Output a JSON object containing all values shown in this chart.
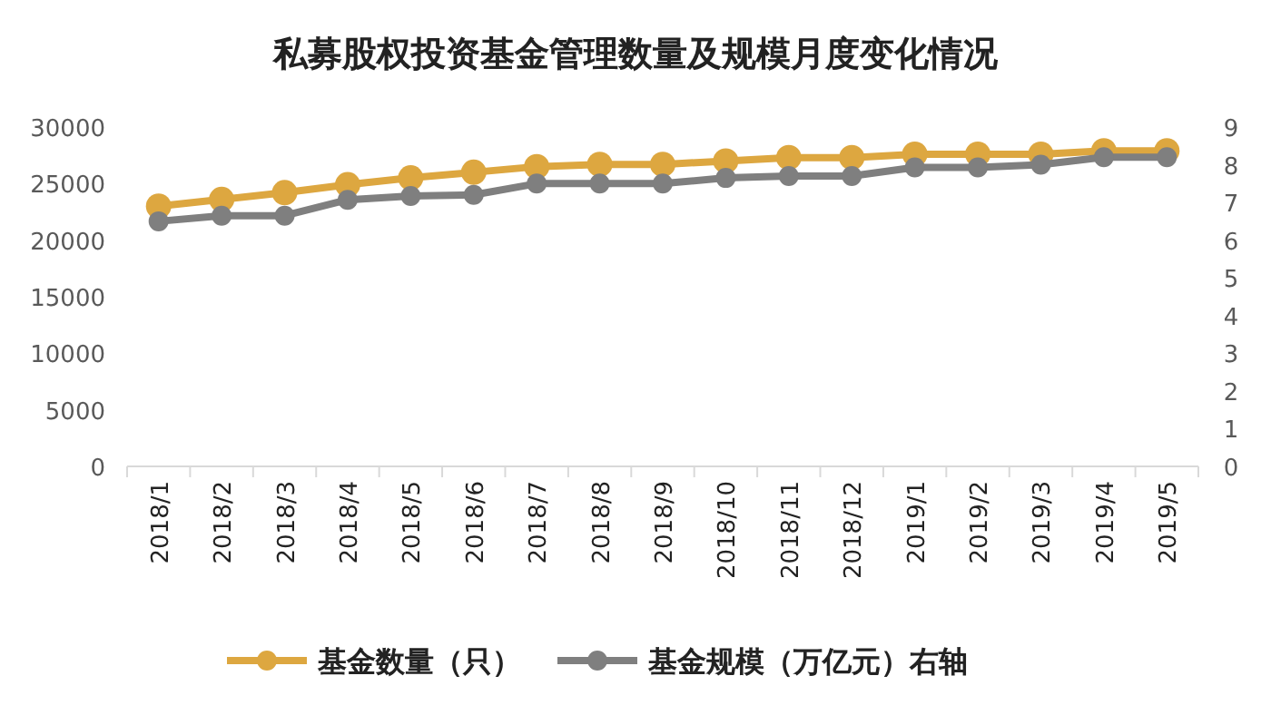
{
  "chart_data": {
    "type": "line",
    "title": "私募股权投资基金管理数量及规模月度变化情况",
    "categories": [
      "2018/1",
      "2018/2",
      "2018/3",
      "2018/4",
      "2018/5",
      "2018/6",
      "2018/7",
      "2018/8",
      "2018/9",
      "2018/10",
      "2018/11",
      "2018/12",
      "2019/1",
      "2019/2",
      "2019/3",
      "2019/4",
      "2019/5"
    ],
    "series": [
      {
        "name": "基金数量（只）",
        "color": "#dda740",
        "values": [
          23000,
          23600,
          24200,
          24900,
          25500,
          26000,
          26500,
          26700,
          26700,
          27000,
          27300,
          27300,
          27600,
          27600,
          27600,
          27900,
          27900
        ]
      },
      {
        "name": "基金规模（万亿元）右轴",
        "color": "#7f7f7f",
        "axis": "y2",
        "values": [
          6.5,
          6.65,
          6.65,
          7.07,
          7.17,
          7.2,
          7.5,
          7.5,
          7.5,
          7.65,
          7.7,
          7.7,
          7.93,
          7.93,
          8.0,
          8.2,
          8.2
        ]
      }
    ],
    "ylim": [
      0,
      30000
    ],
    "yticks": [
      0,
      5000,
      10000,
      15000,
      20000,
      25000,
      30000
    ],
    "y2lim": [
      0,
      9
    ],
    "y2ticks": [
      0,
      1,
      2,
      3,
      4,
      5,
      6,
      7,
      8,
      9
    ],
    "marker": "circle",
    "grid": false,
    "legend": "bottom"
  }
}
